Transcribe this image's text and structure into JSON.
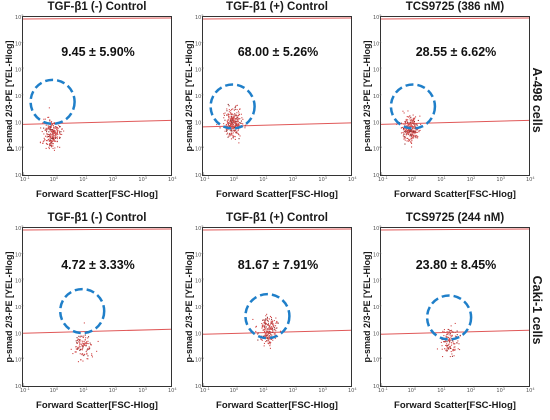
{
  "row_labels": [
    "A-498 cells",
    "Caki-1 cells"
  ],
  "chart_data": [
    {
      "type": "scatter",
      "title": "TGF-β1 (-) Control",
      "annotation": "9.45 ± 5.90%",
      "xlabel": "Forward Scatter[FSC-Hlog]",
      "ylabel": "p-smad 2/3-PE [YEL-Hlog]",
      "log_scale": true,
      "xlim": [
        0.1,
        10000
      ],
      "ylim": [
        0.1,
        100000
      ],
      "cluster": {
        "x_center": 0.9,
        "y_center": 3,
        "count": 230
      },
      "gate": {
        "x_center": 1.0,
        "y_center": 60
      },
      "threshold_y": 10
    },
    {
      "type": "scatter",
      "title": "TGF-β1 (+) Control",
      "annotation": "68.00 ± 5.26%",
      "xlabel": "Forward Scatter[FSC-Hlog]",
      "ylabel": "p-smad 2/3-PE [YEL-Hlog]",
      "log_scale": true,
      "xlim": [
        0.1,
        10000
      ],
      "ylim": [
        0.1,
        100000
      ],
      "cluster": {
        "x_center": 1.0,
        "y_center": 8,
        "count": 260
      },
      "gate": {
        "x_center": 1.0,
        "y_center": 40
      },
      "threshold_y": 8
    },
    {
      "type": "scatter",
      "title": "TCS9725 (386 nM)",
      "annotation": "28.55 ± 6.62%",
      "xlabel": "Forward Scatter[FSC-Hlog]",
      "ylabel": "p-smad 2/3-PE [YEL-Hlog]",
      "log_scale": true,
      "xlim": [
        0.1,
        10000
      ],
      "ylim": [
        0.1,
        100000
      ],
      "cluster": {
        "x_center": 1.0,
        "y_center": 5,
        "count": 240
      },
      "gate": {
        "x_center": 1.2,
        "y_center": 40
      },
      "threshold_y": 10
    },
    {
      "type": "scatter",
      "title": "TGF-β1 (-) Control",
      "annotation": "4.72 ± 3.33%",
      "xlabel": "Forward Scatter[FSC-Hlog]",
      "ylabel": "p-smad 2/3-PE [YEL-Hlog]",
      "log_scale": true,
      "xlim": [
        0.1,
        10000
      ],
      "ylim": [
        0.1,
        100000
      ],
      "cluster": {
        "x_center": 10,
        "y_center": 3,
        "count": 110
      },
      "gate": {
        "x_center": 10,
        "y_center": 70
      },
      "threshold_y": 12
    },
    {
      "type": "scatter",
      "title": "TGF-β1 (+) Control",
      "annotation": "81.67 ± 7.91%",
      "xlabel": "Forward Scatter[FSC-Hlog]",
      "ylabel": "p-smad 2/3-PE [YEL-Hlog]",
      "log_scale": true,
      "xlim": [
        0.1,
        10000
      ],
      "ylim": [
        0.1,
        100000
      ],
      "cluster": {
        "x_center": 15,
        "y_center": 12,
        "count": 200
      },
      "gate": {
        "x_center": 15,
        "y_center": 45
      },
      "threshold_y": 11
    },
    {
      "type": "scatter",
      "title": "TCS9725 (244 nM)",
      "annotation": "23.80 ± 8.45%",
      "xlabel": "Forward Scatter[FSC-Hlog]",
      "ylabel": "p-smad 2/3-PE [YEL-Hlog]",
      "log_scale": true,
      "xlim": [
        0.1,
        10000
      ],
      "ylim": [
        0.1,
        100000
      ],
      "cluster": {
        "x_center": 20,
        "y_center": 4,
        "count": 120
      },
      "gate": {
        "x_center": 20,
        "y_center": 40
      },
      "threshold_y": 11
    }
  ],
  "colors": {
    "points": "#d24b4b",
    "gate": "#1f7fc9",
    "threshold": "#e05858"
  }
}
